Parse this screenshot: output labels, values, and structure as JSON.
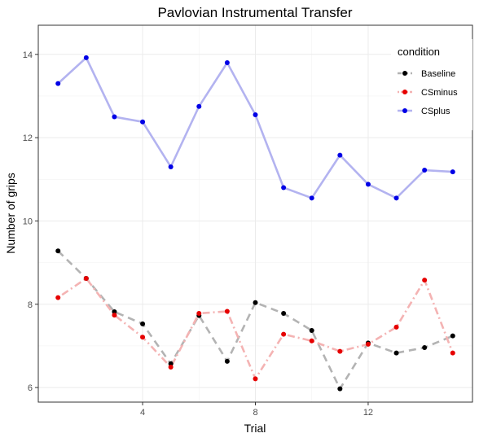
{
  "chart_data": {
    "type": "line",
    "title": "Pavlovian Instrumental Transfer",
    "xlabel": "Trial",
    "ylabel": "Number of grips",
    "xlim": [
      0.3,
      15.7
    ],
    "ylim": [
      5.65,
      14.7
    ],
    "x_ticks": [
      4,
      8,
      12
    ],
    "y_ticks": [
      6,
      8,
      10,
      12,
      14
    ],
    "grid": true,
    "legend": {
      "title": "condition",
      "position": "top-right"
    },
    "x": [
      1,
      2,
      3,
      4,
      5,
      6,
      7,
      8,
      9,
      10,
      11,
      12,
      13,
      14,
      15
    ],
    "series": [
      {
        "name": "Baseline",
        "line_color": "#b3b3b3",
        "point_color": "#000000",
        "dash": "dashed",
        "values": [
          9.28,
          8.62,
          7.82,
          7.53,
          6.57,
          7.73,
          6.63,
          8.04,
          7.78,
          7.37,
          5.97,
          7.07,
          6.83,
          6.96,
          7.24
        ]
      },
      {
        "name": "CSminus",
        "line_color": "#f4b3b3",
        "point_color": "#e60000",
        "dash": "dotdash",
        "values": [
          8.16,
          8.62,
          7.74,
          7.21,
          6.49,
          7.78,
          7.83,
          6.21,
          7.28,
          7.12,
          6.87,
          7.04,
          7.45,
          8.58,
          6.83
        ]
      },
      {
        "name": "CSplus",
        "line_color": "#b3b3f0",
        "point_color": "#0000e6",
        "dash": "solid",
        "values": [
          13.3,
          13.92,
          12.5,
          12.38,
          11.3,
          12.75,
          13.8,
          12.55,
          10.8,
          10.55,
          11.58,
          10.88,
          10.55,
          11.22,
          11.18
        ]
      }
    ]
  }
}
